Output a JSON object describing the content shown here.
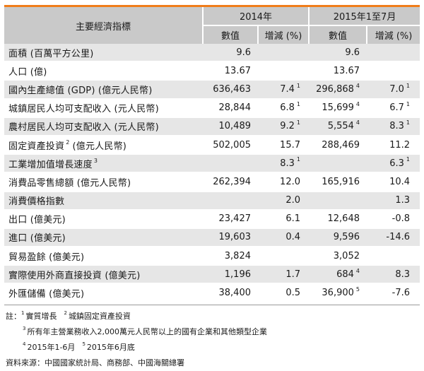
{
  "header": {
    "indicator": "主要經濟指標",
    "period_2014": "2014年",
    "period_2015": "2015年1至7月",
    "value": "數值",
    "change": "增減 (%)"
  },
  "rows": [
    {
      "indicator": "面積 (百萬平方公里)",
      "ind_note": "",
      "v2014": "9.6",
      "c2014": "",
      "c2014_note": "",
      "v2015": "9.6",
      "v2015_note": "",
      "c2015": "",
      "c2015_note": ""
    },
    {
      "indicator": "人口 (億)",
      "ind_note": "",
      "v2014": "13.67",
      "c2014": "",
      "c2014_note": "",
      "v2015": "13.67",
      "v2015_note": "",
      "c2015": "",
      "c2015_note": ""
    },
    {
      "indicator": "國內生產總值 (GDP) (億元人民幣)",
      "ind_note": "",
      "v2014": "636,463",
      "c2014": "7.4",
      "c2014_note": "1",
      "v2015": "296,868",
      "v2015_note": "4",
      "c2015": "7.0",
      "c2015_note": "1"
    },
    {
      "indicator": "城鎮居民人均可支配收入 (元人民幣)",
      "ind_note": "",
      "v2014": "28,844",
      "c2014": "6.8",
      "c2014_note": "1",
      "v2015": "15,699",
      "v2015_note": "4",
      "c2015": "6.7",
      "c2015_note": "1"
    },
    {
      "indicator": "農村居民人均可支配收入 (元人民幣)",
      "ind_note": "",
      "v2014": "10,489",
      "c2014": "9.2",
      "c2014_note": "1",
      "v2015": "5,554",
      "v2015_note": "4",
      "c2015": "8.3",
      "c2015_note": "1"
    },
    {
      "indicator": "固定資產投資",
      "ind_note": "2",
      "ind_suffix": "(億元人民幣)",
      "v2014": "502,005",
      "c2014": "15.7",
      "c2014_note": "",
      "v2015": "288,469",
      "v2015_note": "",
      "c2015": "11.2",
      "c2015_note": ""
    },
    {
      "indicator": "工業增加值增長速度",
      "ind_note": "3",
      "v2014": "",
      "c2014": "8.3",
      "c2014_note": "1",
      "v2015": "",
      "v2015_note": "",
      "c2015": "6.3",
      "c2015_note": "1"
    },
    {
      "indicator": "消費品零售總額 (億元人民幣)",
      "ind_note": "",
      "v2014": "262,394",
      "c2014": "12.0",
      "c2014_note": "",
      "v2015": "165,916",
      "v2015_note": "",
      "c2015": "10.4",
      "c2015_note": ""
    },
    {
      "indicator": "消費價格指數",
      "ind_note": "",
      "v2014": "",
      "c2014": "2.0",
      "c2014_note": "",
      "v2015": "",
      "v2015_note": "",
      "c2015": "1.3",
      "c2015_note": ""
    },
    {
      "indicator": "出口 (億美元)",
      "ind_note": "",
      "v2014": "23,427",
      "c2014": "6.1",
      "c2014_note": "",
      "v2015": "12,648",
      "v2015_note": "",
      "c2015": "-0.8",
      "c2015_note": ""
    },
    {
      "indicator": "進口 (億美元)",
      "ind_note": "",
      "v2014": "19,603",
      "c2014": "0.4",
      "c2014_note": "",
      "v2015": "9,596",
      "v2015_note": "",
      "c2015": "-14.6",
      "c2015_note": ""
    },
    {
      "indicator": "貿易盈餘 (億美元)",
      "ind_note": "",
      "v2014": "3,824",
      "c2014": "",
      "c2014_note": "",
      "v2015": "3,052",
      "v2015_note": "",
      "c2015": "",
      "c2015_note": ""
    },
    {
      "indicator": "實際使用外商直接投資 (億美元)",
      "ind_note": "",
      "v2014": "1,196",
      "c2014": "1.7",
      "c2014_note": "",
      "v2015": "684",
      "v2015_note": "4",
      "c2015": "8.3",
      "c2015_note": ""
    },
    {
      "indicator": "外匯儲備 (億美元)",
      "ind_note": "",
      "v2014": "38,400",
      "c2014": "0.5",
      "c2014_note": "",
      "v2015": "36,900",
      "v2015_note": "5",
      "c2015": "-7.6",
      "c2015_note": ""
    }
  ],
  "notes": {
    "prefix": "註：",
    "n1_mark": "1",
    "n1_text": "實質增長",
    "n2_mark": "2",
    "n2_text": "城鎮固定資產投資",
    "n3_mark": "3",
    "n3_text": "所有年主營業務收入2,000萬元人民幣以上的國有企業和其他類型企業",
    "n4_mark": "4",
    "n4_text": "2015年1-6月",
    "n5_mark": "5",
    "n5_text": "2015年6月底",
    "source": "資料來源：中國國家統計局、商務部、中國海關總署"
  },
  "colors": {
    "accent": "#f07d1a",
    "header_bg": "#c9c9c9",
    "row_shade": "#e6e6e6"
  }
}
